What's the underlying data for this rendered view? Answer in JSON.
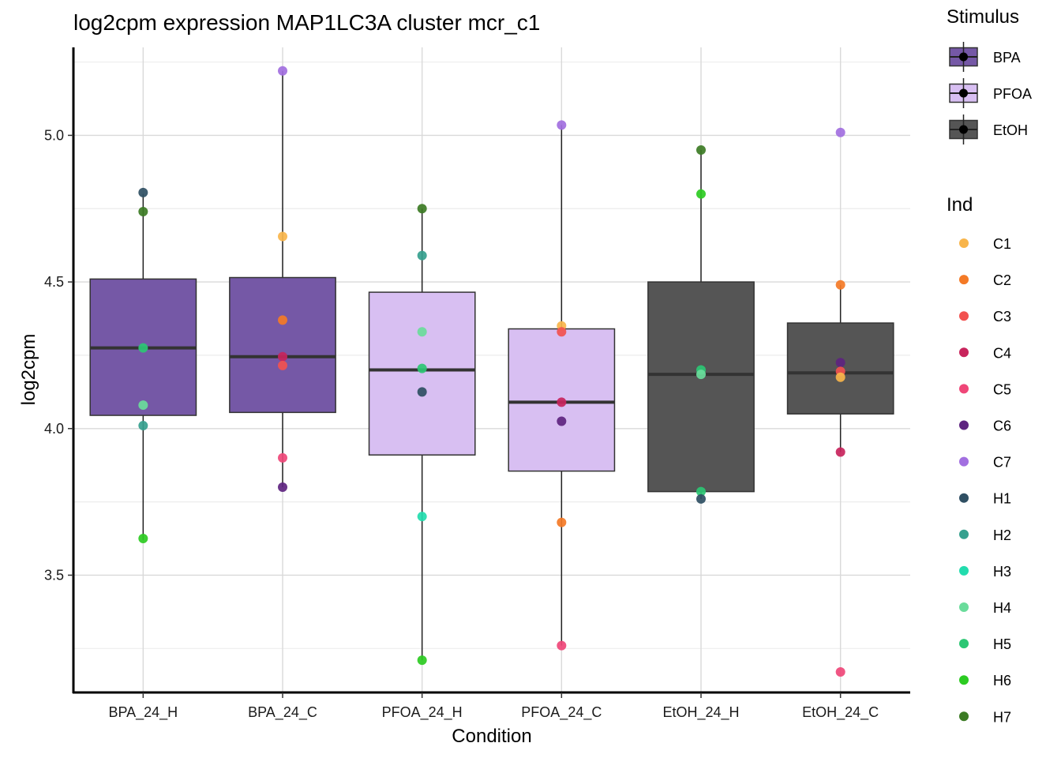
{
  "chart_data": {
    "type": "box",
    "title": "log2cpm expression MAP1LC3A cluster mcr_c1",
    "xlabel": "Condition",
    "ylabel": "log2cpm",
    "ylim": [
      3.1,
      5.3
    ],
    "yticks": [
      3.5,
      4.0,
      4.5,
      5.0
    ],
    "grid": true,
    "categories": [
      "BPA_24_H",
      "BPA_24_C",
      "PFOA_24_H",
      "PFOA_24_C",
      "EtOH_24_H",
      "EtOH_24_C"
    ],
    "stimulus_colors": {
      "BPA": "#7558a6",
      "PFOA": "#d8bff2",
      "EtOH": "#555555"
    },
    "individual_colors": {
      "C1": "#f8b54b",
      "C2": "#f47a26",
      "C3": "#f2514f",
      "C4": "#c8245c",
      "C5": "#ef4678",
      "C6": "#5e2480",
      "C7": "#a26fe0",
      "H1": "#2f4f63",
      "H2": "#35a08e",
      "H3": "#22dcae",
      "H4": "#6adc9b",
      "H5": "#2cc774",
      "H6": "#2ccb22",
      "H7": "#3c7b24"
    },
    "boxes": [
      {
        "condition": "BPA_24_H",
        "stimulus": "BPA",
        "q1": 4.045,
        "median": 4.275,
        "q3": 4.51,
        "whisker_low": 3.62,
        "whisker_high": 4.8
      },
      {
        "condition": "BPA_24_C",
        "stimulus": "BPA",
        "q1": 4.055,
        "median": 4.245,
        "q3": 4.515,
        "whisker_low": 3.8,
        "whisker_high": 5.22
      },
      {
        "condition": "PFOA_24_H",
        "stimulus": "PFOA",
        "q1": 3.91,
        "median": 4.2,
        "q3": 4.465,
        "whisker_low": 3.21,
        "whisker_high": 4.75
      },
      {
        "condition": "PFOA_24_C",
        "stimulus": "PFOA",
        "q1": 3.855,
        "median": 4.09,
        "q3": 4.34,
        "whisker_low": 3.26,
        "whisker_high": 5.035
      },
      {
        "condition": "EtOH_24_H",
        "stimulus": "EtOH",
        "q1": 3.785,
        "median": 4.185,
        "q3": 4.5,
        "whisker_low": 3.76,
        "whisker_high": 4.95
      },
      {
        "condition": "EtOH_24_C",
        "stimulus": "EtOH",
        "q1": 4.05,
        "median": 4.19,
        "q3": 4.36,
        "whisker_low": 3.92,
        "whisker_high": 4.49
      }
    ],
    "points": [
      {
        "condition": "BPA_24_H",
        "ind": "H1",
        "y": 4.805
      },
      {
        "condition": "BPA_24_H",
        "ind": "H7",
        "y": 4.74
      },
      {
        "condition": "BPA_24_H",
        "ind": "H5",
        "y": 4.275
      },
      {
        "condition": "BPA_24_H",
        "ind": "H4",
        "y": 4.08
      },
      {
        "condition": "BPA_24_H",
        "ind": "H2",
        "y": 4.01
      },
      {
        "condition": "BPA_24_H",
        "ind": "H6",
        "y": 3.625
      },
      {
        "condition": "BPA_24_C",
        "ind": "C7",
        "y": 5.22
      },
      {
        "condition": "BPA_24_C",
        "ind": "C1",
        "y": 4.655
      },
      {
        "condition": "BPA_24_C",
        "ind": "C2",
        "y": 4.37
      },
      {
        "condition": "BPA_24_C",
        "ind": "C4",
        "y": 4.245
      },
      {
        "condition": "BPA_24_C",
        "ind": "C3",
        "y": 4.215
      },
      {
        "condition": "BPA_24_C",
        "ind": "C5",
        "y": 3.9
      },
      {
        "condition": "BPA_24_C",
        "ind": "C6",
        "y": 3.8
      },
      {
        "condition": "PFOA_24_H",
        "ind": "H7",
        "y": 4.75
      },
      {
        "condition": "PFOA_24_H",
        "ind": "H2",
        "y": 4.59
      },
      {
        "condition": "PFOA_24_H",
        "ind": "H4",
        "y": 4.33
      },
      {
        "condition": "PFOA_24_H",
        "ind": "H5",
        "y": 4.205
      },
      {
        "condition": "PFOA_24_H",
        "ind": "H1",
        "y": 4.125
      },
      {
        "condition": "PFOA_24_H",
        "ind": "H3",
        "y": 3.7
      },
      {
        "condition": "PFOA_24_H",
        "ind": "H6",
        "y": 3.21
      },
      {
        "condition": "PFOA_24_C",
        "ind": "C7",
        "y": 5.035
      },
      {
        "condition": "PFOA_24_C",
        "ind": "C1",
        "y": 4.35
      },
      {
        "condition": "PFOA_24_C",
        "ind": "C3",
        "y": 4.33
      },
      {
        "condition": "PFOA_24_C",
        "ind": "C4",
        "y": 4.09
      },
      {
        "condition": "PFOA_24_C",
        "ind": "C6",
        "y": 4.025
      },
      {
        "condition": "PFOA_24_C",
        "ind": "C2",
        "y": 3.68
      },
      {
        "condition": "PFOA_24_C",
        "ind": "C5",
        "y": 3.26
      },
      {
        "condition": "EtOH_24_H",
        "ind": "H7",
        "y": 4.95
      },
      {
        "condition": "EtOH_24_H",
        "ind": "H6",
        "y": 4.8
      },
      {
        "condition": "EtOH_24_H",
        "ind": "H5",
        "y": 4.2
      },
      {
        "condition": "EtOH_24_H",
        "ind": "H4",
        "y": 4.185
      },
      {
        "condition": "EtOH_24_H",
        "ind": "H5",
        "y": 3.785
      },
      {
        "condition": "EtOH_24_H",
        "ind": "H1",
        "y": 3.76
      },
      {
        "condition": "EtOH_24_C",
        "ind": "C7",
        "y": 5.01
      },
      {
        "condition": "EtOH_24_C",
        "ind": "C2",
        "y": 4.49
      },
      {
        "condition": "EtOH_24_C",
        "ind": "C6",
        "y": 4.225
      },
      {
        "condition": "EtOH_24_C",
        "ind": "C3",
        "y": 4.195
      },
      {
        "condition": "EtOH_24_C",
        "ind": "C1",
        "y": 4.175
      },
      {
        "condition": "EtOH_24_C",
        "ind": "C4",
        "y": 3.92
      },
      {
        "condition": "EtOH_24_C",
        "ind": "C5",
        "y": 3.17
      }
    ],
    "legend": {
      "placement": "right",
      "stimulus_title": "Stimulus",
      "stimulus": [
        "BPA",
        "PFOA",
        "EtOH"
      ],
      "ind_title": "Ind",
      "ind": [
        "C1",
        "C2",
        "C3",
        "C4",
        "C5",
        "C6",
        "C7",
        "H1",
        "H2",
        "H3",
        "H4",
        "H5",
        "H6",
        "H7"
      ]
    }
  }
}
